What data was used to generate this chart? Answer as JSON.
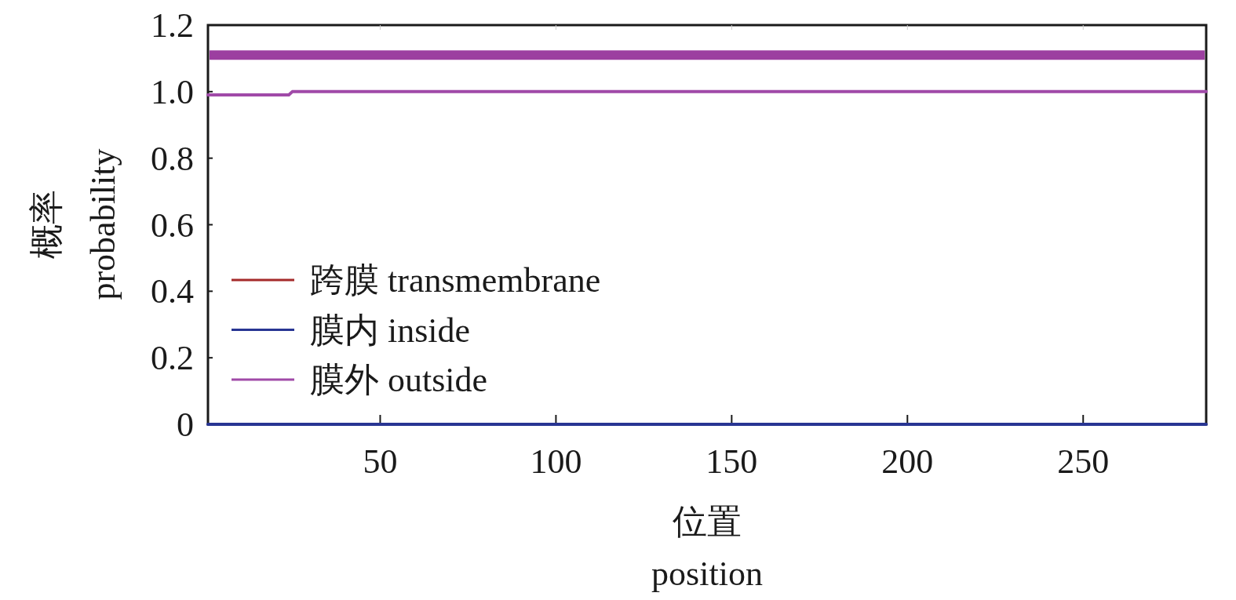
{
  "chart_data": {
    "type": "line",
    "xlabel": "位置 position",
    "ylabel": "概率 probability",
    "xlim": [
      1,
      285
    ],
    "x": [
      1,
      285
    ],
    "xticks": [
      50,
      100,
      150,
      200,
      250
    ],
    "ylim": [
      0,
      1.2
    ],
    "yticks": [
      {
        "value": 0,
        "label": "0"
      },
      0.2,
      0.4,
      0.6,
      0.8,
      {
        "value": 1,
        "label": "1.0"
      },
      1.2
    ],
    "legend": "left",
    "grid": false,
    "marker": "none",
    "line_style": "solid",
    "ref_lines": [
      {
        "axis": "y",
        "value": 1.11,
        "color": "#9c3fa0"
      }
    ],
    "series": [
      {
        "name": "跨膜 transmembrane",
        "color": "#a52a2a",
        "values": [
          null,
          null
        ]
      },
      {
        "name": "膜内 inside",
        "color": "#283593",
        "values": [
          0,
          0
        ]
      },
      {
        "name": "膜外 outside",
        "color": "#a04aa8",
        "x": [
          1,
          24,
          25,
          285
        ],
        "values": [
          0.99,
          0.99,
          1.0,
          1.0
        ]
      }
    ]
  }
}
